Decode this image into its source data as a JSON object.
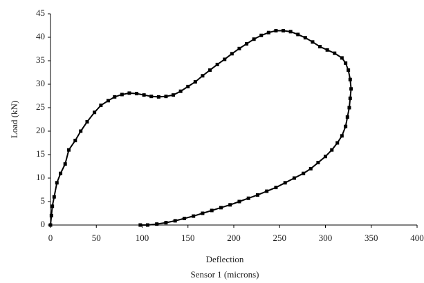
{
  "chart_data": {
    "type": "line",
    "x_label": "Deflection",
    "x_label_sub": "Sensor 1 (microns)",
    "y_label": "Load (kN)",
    "color": "#000000",
    "marker": "square",
    "x": [
      0,
      1,
      2,
      4,
      7,
      11,
      16,
      20,
      27,
      33,
      40,
      48,
      55,
      63,
      70,
      78,
      86,
      94,
      102,
      110,
      118,
      126,
      134,
      142,
      150,
      158,
      166,
      174,
      182,
      190,
      198,
      206,
      214,
      222,
      230,
      238,
      246,
      254,
      262,
      270,
      278,
      286,
      294,
      302,
      310,
      318,
      322,
      325,
      327,
      328,
      327,
      326,
      324,
      322,
      318,
      313,
      307,
      300,
      292,
      284,
      276,
      266,
      256,
      246,
      236,
      226,
      216,
      206,
      196,
      186,
      176,
      166,
      156,
      146,
      136,
      126,
      116,
      106,
      98
    ],
    "values": [
      0,
      2,
      4,
      6,
      9,
      11,
      13,
      16,
      18,
      20,
      22,
      24,
      25.5,
      26.5,
      27.3,
      27.8,
      28.1,
      28,
      27.7,
      27.4,
      27.3,
      27.4,
      27.7,
      28.5,
      29.5,
      30.5,
      31.8,
      33,
      34.2,
      35.3,
      36.5,
      37.6,
      38.6,
      39.6,
      40.4,
      41,
      41.4,
      41.4,
      41.2,
      40.6,
      39.9,
      39,
      38,
      37.3,
      36.6,
      35.6,
      34.5,
      33,
      31,
      29,
      27,
      25,
      23,
      21,
      19,
      17.5,
      16,
      14.6,
      13.3,
      12,
      11,
      10,
      9,
      8,
      7.2,
      6.4,
      5.7,
      5,
      4.3,
      3.7,
      3.1,
      2.5,
      1.9,
      1.4,
      0.9,
      0.5,
      0.2,
      0,
      0
    ],
    "xlim": [
      0,
      400
    ],
    "xticks": [
      0,
      50,
      100,
      150,
      200,
      250,
      300,
      350,
      400
    ],
    "ylim": [
      0,
      45
    ],
    "yticks": [
      0,
      5,
      10,
      15,
      20,
      25,
      30,
      35,
      40,
      45
    ]
  }
}
